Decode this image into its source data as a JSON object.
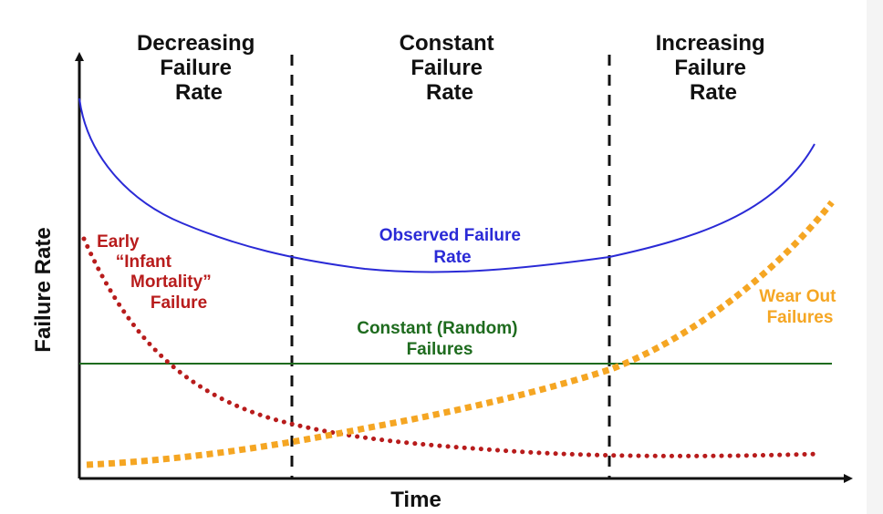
{
  "regions": [
    {
      "lines": [
        "Decreasing",
        "Failure",
        "Rate"
      ]
    },
    {
      "lines": [
        "Constant",
        "Failure",
        "Rate"
      ]
    },
    {
      "lines": [
        "Increasing",
        "Failure",
        "Rate"
      ]
    }
  ],
  "axes": {
    "x_label": "Time",
    "y_label": "Failure Rate"
  },
  "curves": {
    "observed": {
      "lines": [
        "Observed Failure",
        "Rate"
      ],
      "color": "#2a2ad6"
    },
    "infant": {
      "lines": [
        "Early",
        "“Infant",
        "Mortality”",
        "Failure"
      ],
      "color": "#b81c1c"
    },
    "constant": {
      "lines": [
        "Constant (Random)",
        "Failures"
      ],
      "color": "#1e6b1e"
    },
    "wearout": {
      "lines": [
        "Wear Out",
        "Failures"
      ],
      "color": "#f5a623"
    }
  },
  "colors": {
    "axis": "#111111",
    "divider": "#111111"
  }
}
